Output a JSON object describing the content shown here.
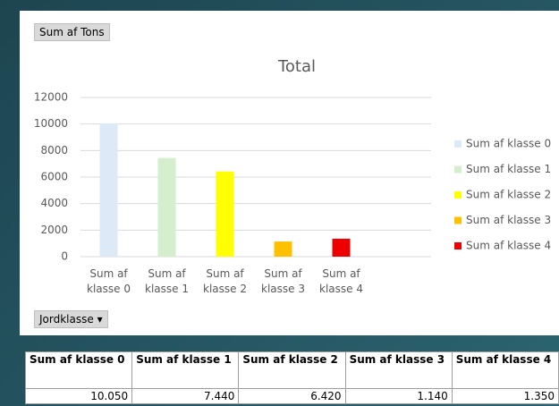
{
  "chart_data": {
    "type": "bar",
    "title": "Total",
    "categories": [
      "Sum af klasse 0",
      "Sum af klasse 1",
      "Sum af klasse 2",
      "Sum af klasse 3",
      "Sum af klasse 4"
    ],
    "values": [
      10050,
      7440,
      6420,
      1140,
      1350
    ],
    "colors": [
      "#dce9f6",
      "#d5eecd",
      "#ffff00",
      "#ffc000",
      "#ee0000"
    ],
    "ylim": [
      0,
      12000
    ],
    "yticks": [
      0,
      2000,
      4000,
      6000,
      8000,
      10000,
      12000
    ],
    "grid": true,
    "legend": "right"
  },
  "value_button": "Sum af Tons",
  "axis_button": "Jordklasse",
  "table": {
    "header": [
      "Sum af klasse 0",
      "Sum af klasse 1",
      "Sum af klasse 2",
      "Sum af klasse 3",
      "Sum af klasse 4"
    ],
    "rows": [
      [
        "10.050",
        "7.440",
        "6.420",
        "1.140",
        "1.350"
      ]
    ]
  }
}
